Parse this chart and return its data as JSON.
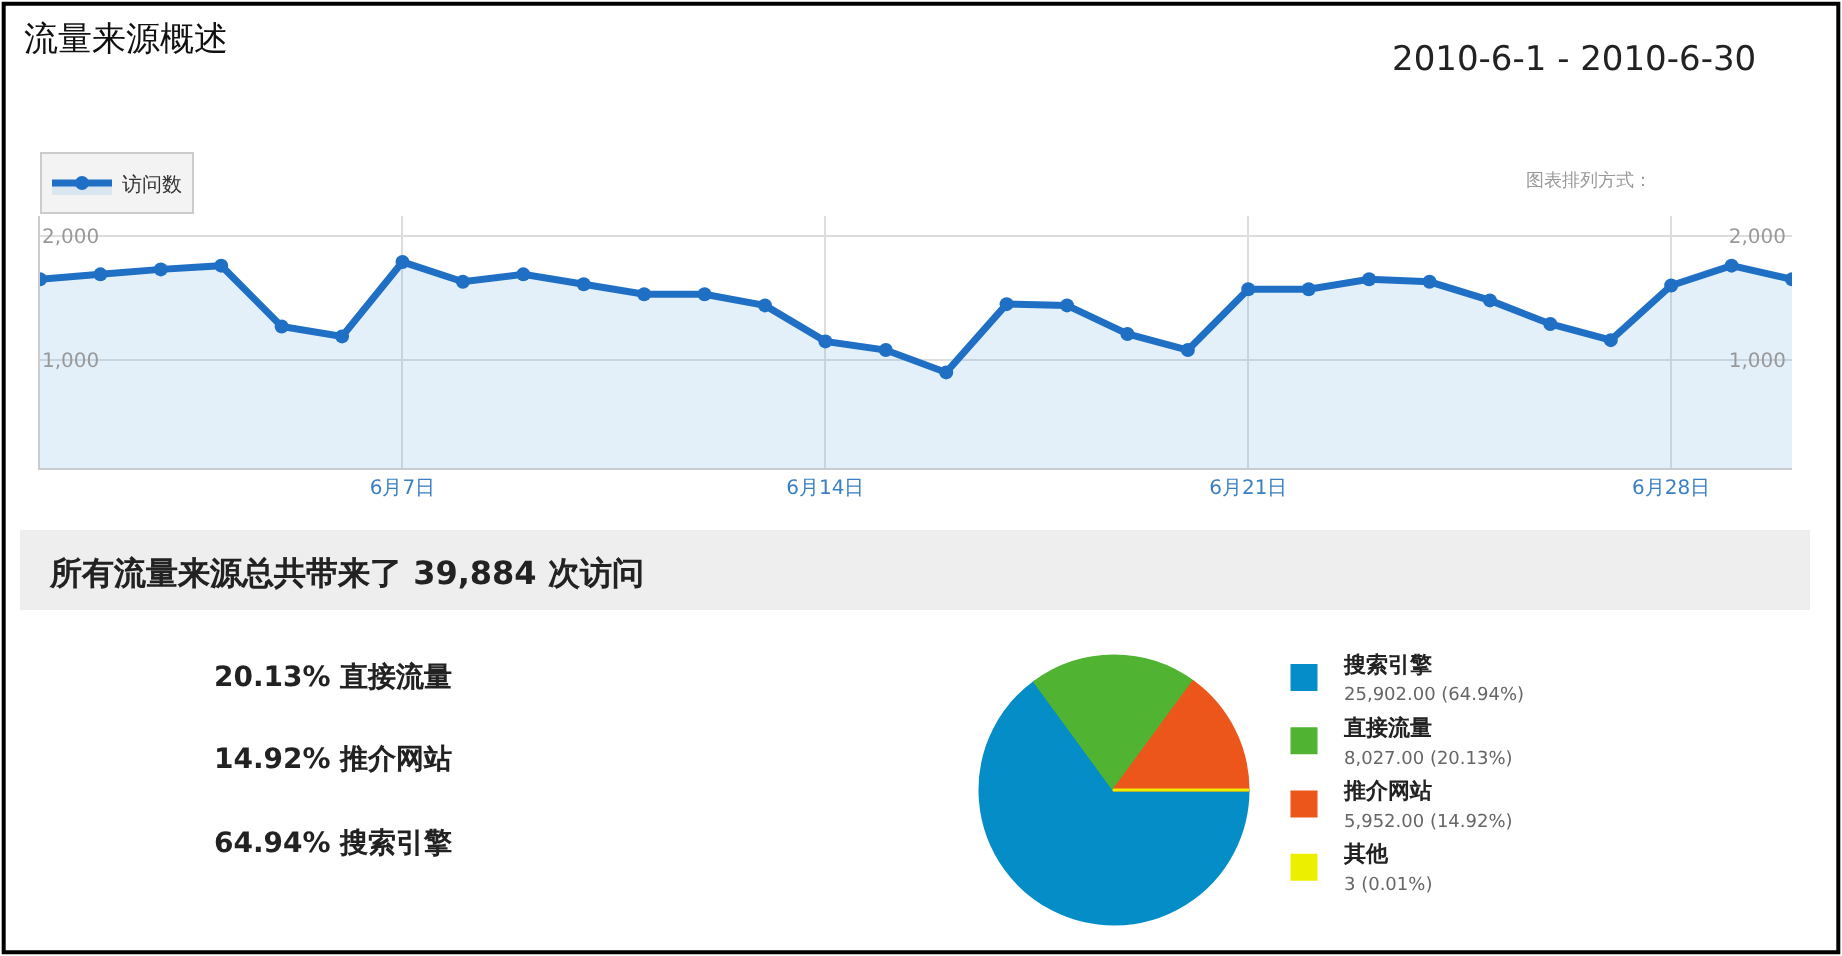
{
  "chart_data": [
    {
      "type": "area",
      "title": "流量来源概述",
      "annotations": [
        "2010-6-1 - 2010-6-30",
        "图表排列方式："
      ],
      "x": [
        "2010-06-01",
        "2010-06-02",
        "2010-06-03",
        "2010-06-04",
        "2010-06-05",
        "2010-06-06",
        "2010-06-07",
        "2010-06-08",
        "2010-06-09",
        "2010-06-10",
        "2010-06-11",
        "2010-06-12",
        "2010-06-13",
        "2010-06-14",
        "2010-06-15",
        "2010-06-16",
        "2010-06-17",
        "2010-06-18",
        "2010-06-19",
        "2010-06-20",
        "2010-06-21",
        "2010-06-22",
        "2010-06-23",
        "2010-06-24",
        "2010-06-25",
        "2010-06-26",
        "2010-06-27",
        "2010-06-28",
        "2010-06-29",
        "2010-06-30"
      ],
      "series": [
        {
          "name": "访问数",
          "color": "#1f6fc5",
          "values": [
            1650,
            1690,
            1730,
            1760,
            1270,
            1190,
            1790,
            1630,
            1690,
            1610,
            1530,
            1530,
            1440,
            1150,
            1080,
            900,
            1450,
            1440,
            1210,
            1080,
            1570,
            1570,
            1650,
            1630,
            1480,
            1290,
            1160,
            1600,
            1760,
            1650
          ]
        }
      ],
      "xlim": [
        "2010-06-01",
        "2010-06-30"
      ],
      "xticks": [
        {
          "value": "2010-06-07",
          "label": "6月7日"
        },
        {
          "value": "2010-06-14",
          "label": "6月14日"
        },
        {
          "value": "2010-06-21",
          "label": "6月21日"
        },
        {
          "value": "2010-06-28",
          "label": "6月28日"
        }
      ],
      "ylim": [
        130,
        2160
      ],
      "yticks": [
        {
          "value": 1000,
          "label": "1,000"
        },
        {
          "value": 2000,
          "label": "2,000"
        }
      ],
      "y2lim": [
        130,
        2160
      ],
      "y2ticks": [
        {
          "value": 1000,
          "label": "1,000"
        },
        {
          "value": 2000,
          "label": "2,000"
        }
      ],
      "grid": true,
      "legend": "top left",
      "marker": "circle",
      "line_style": "solid"
    },
    {
      "type": "other",
      "title": "所有流量来源总共带来了 39,884 次访问",
      "annotations": [
        "20.13% 直接流量",
        "14.92% 推介网站",
        "64.94% 搜索引擎"
      ]
    },
    {
      "type": "pie",
      "categories": [
        "搜索引擎",
        "直接流量",
        "推介网站",
        "其他"
      ],
      "values": [
        25902,
        8027,
        5952,
        3
      ],
      "colors": [
        "#058dc7",
        "#50b432",
        "#ed561b",
        "#edef00"
      ],
      "value_labels": [
        "25,902.00 (64.94%)",
        "8,027.00 (20.13%)",
        "5,952.00 (14.92%)",
        "3 (0.01%)"
      ],
      "legend": "right"
    }
  ]
}
